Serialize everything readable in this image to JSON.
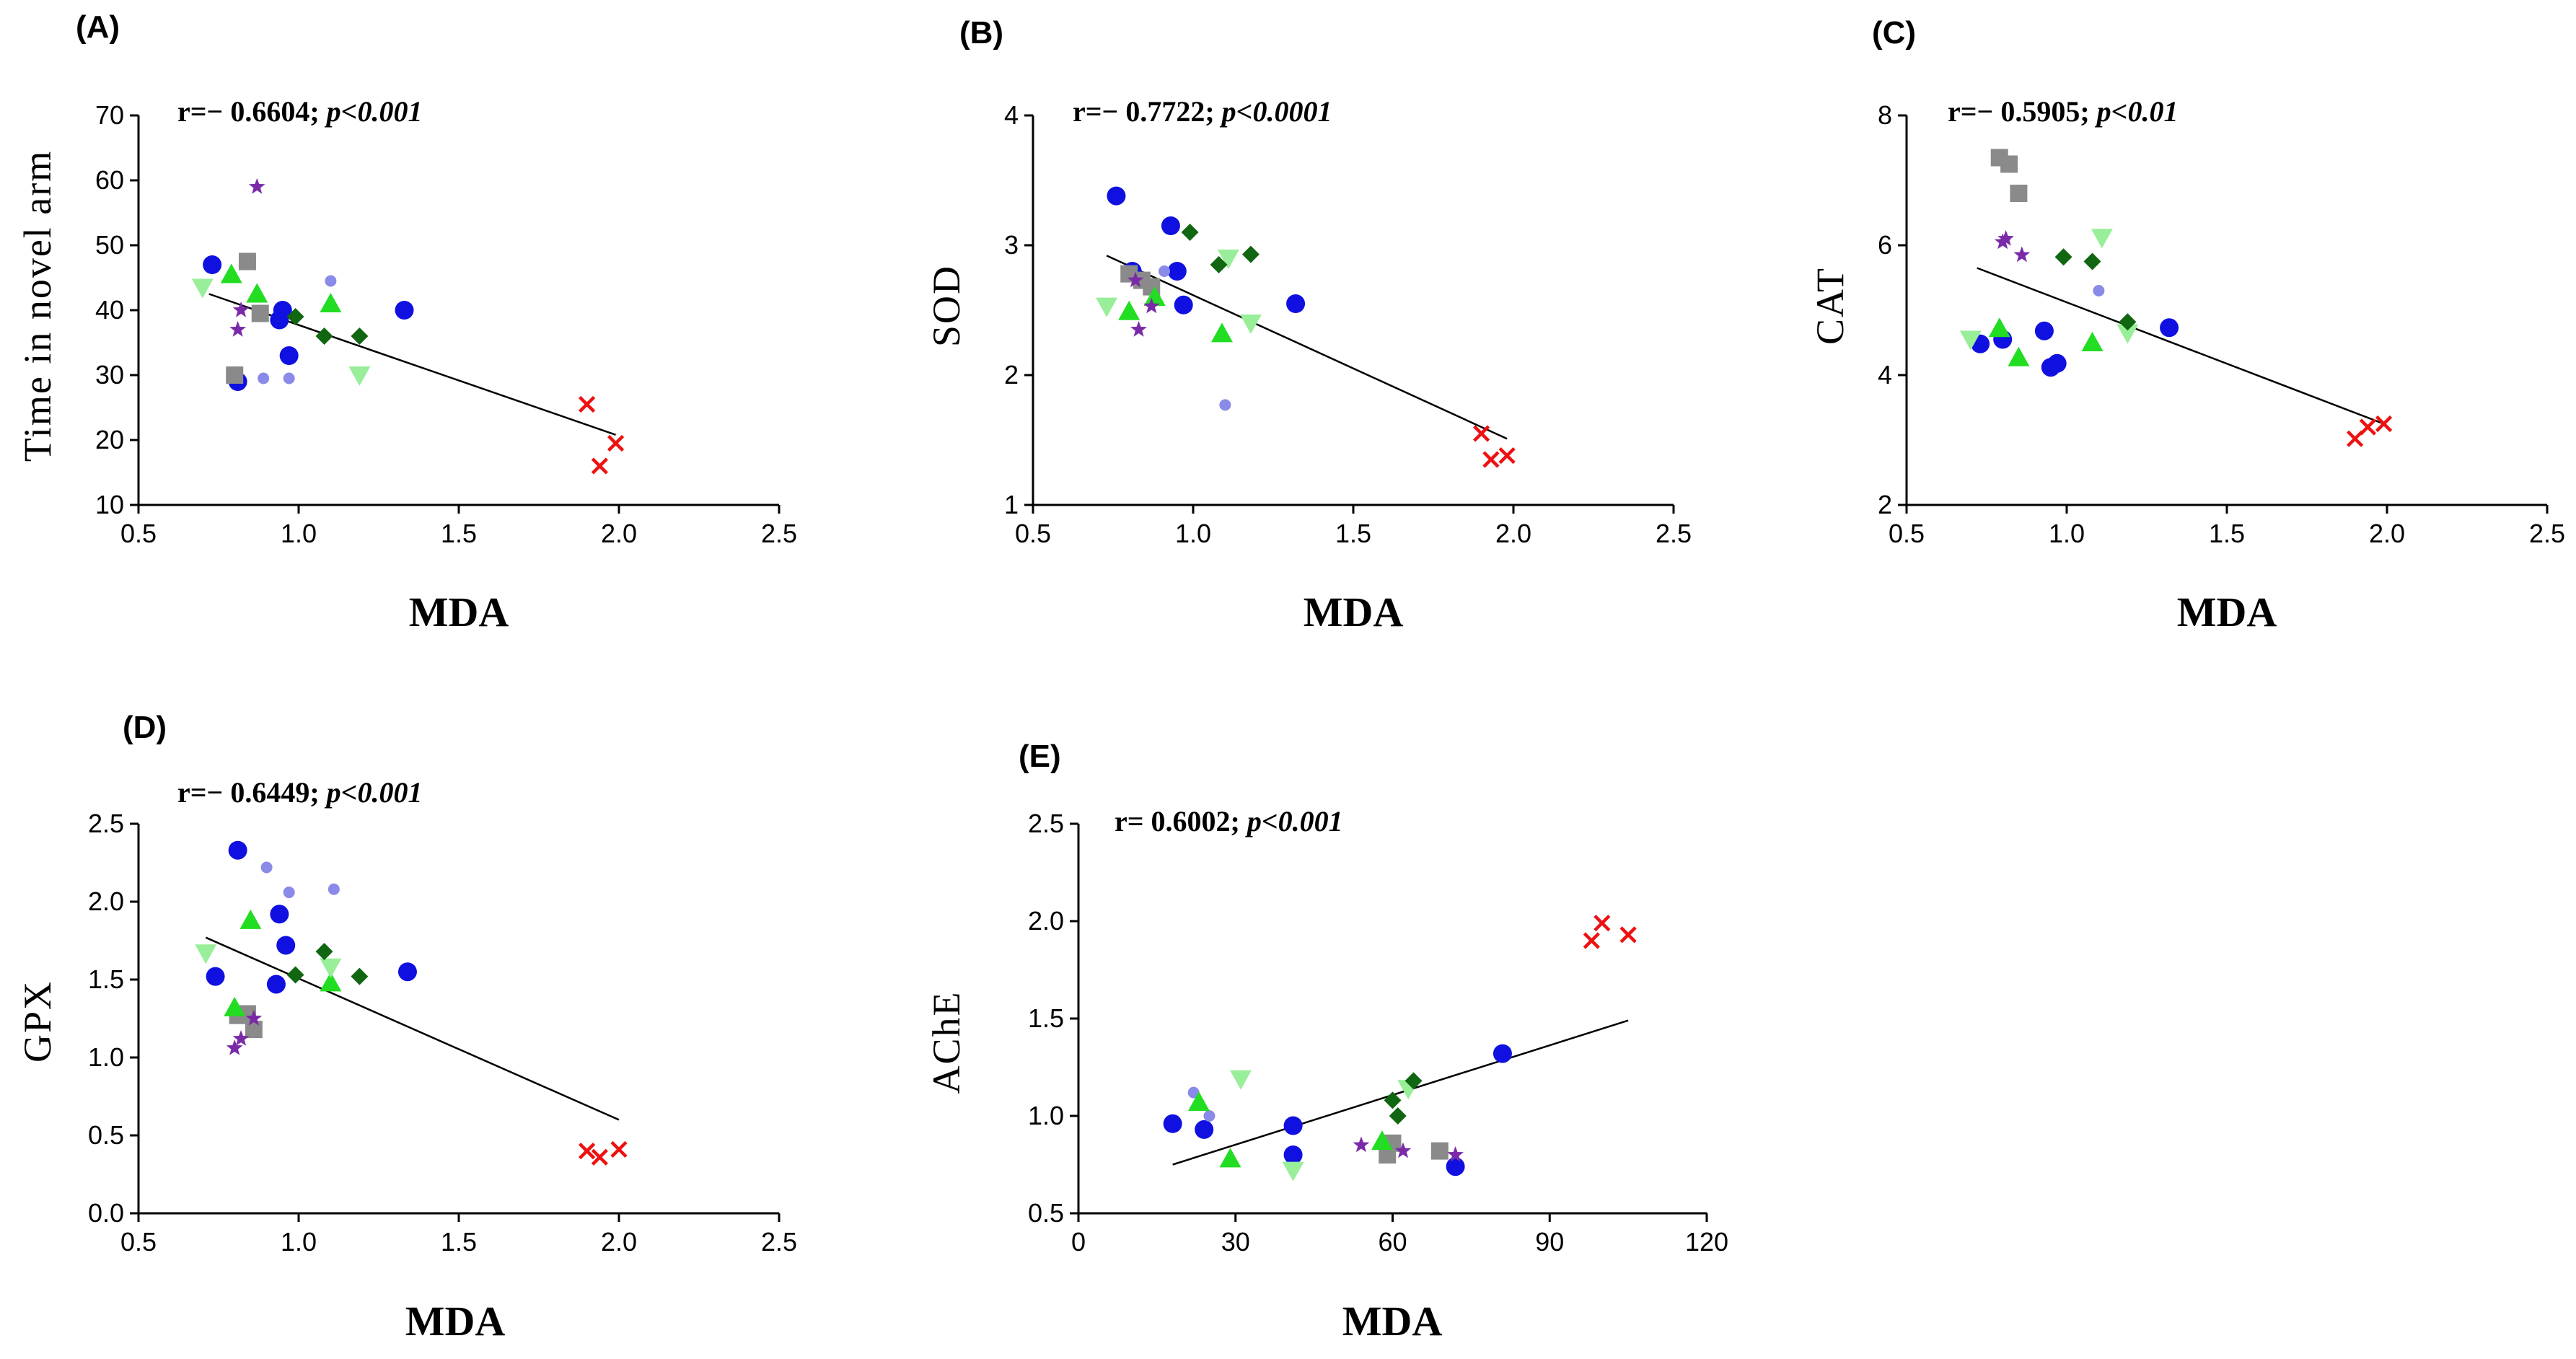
{
  "chart_data": [
    {
      "id": "A",
      "type": "scatter",
      "panel_label": "(A)",
      "stat_r": "r=− 0.6604; ",
      "stat_p": "p<0.001",
      "xlabel": "MDA",
      "ylabel": "Time in novel arm",
      "xlim": [
        0.5,
        2.5
      ],
      "ylim": [
        10,
        70
      ],
      "xticks": [
        0.5,
        1.0,
        1.5,
        2.0,
        2.5
      ],
      "yticks": [
        10,
        20,
        30,
        40,
        50,
        60,
        70
      ],
      "fit_line": {
        "x": [
          0.72,
          1.99
        ],
        "y": [
          42.5,
          20.8
        ]
      },
      "series": [
        {
          "name": "blue-circle",
          "marker": "circle",
          "color": "#1010e0",
          "points": [
            [
              0.73,
              47
            ],
            [
              0.81,
              29
            ],
            [
              0.94,
              38.5
            ],
            [
              0.95,
              40
            ],
            [
              0.97,
              33
            ],
            [
              1.33,
              40
            ]
          ]
        },
        {
          "name": "light-blue-circle",
          "marker": "small-circle",
          "color": "#8a8ae8",
          "points": [
            [
              0.89,
              29.5
            ],
            [
              0.97,
              29.5
            ],
            [
              1.1,
              44.5
            ]
          ]
        },
        {
          "name": "gray-square",
          "marker": "square",
          "color": "#8a8a8a",
          "points": [
            [
              0.8,
              30
            ],
            [
              0.84,
              47.5
            ],
            [
              0.88,
              39.5
            ]
          ]
        },
        {
          "name": "green-triangle",
          "marker": "triangle",
          "color": "#22dd22",
          "points": [
            [
              0.79,
              45.5
            ],
            [
              0.87,
              42.5
            ],
            [
              1.1,
              41
            ]
          ]
        },
        {
          "name": "light-green-triangle-down",
          "marker": "triangle-down",
          "color": "#99ee99",
          "points": [
            [
              0.7,
              43.5
            ],
            [
              1.19,
              30
            ]
          ]
        },
        {
          "name": "dark-green-diamond",
          "marker": "diamond",
          "color": "#116611",
          "points": [
            [
              0.99,
              39
            ],
            [
              1.08,
              36
            ],
            [
              1.19,
              36
            ]
          ]
        },
        {
          "name": "purple-star",
          "marker": "star",
          "color": "#7a2aa8",
          "points": [
            [
              0.81,
              37
            ],
            [
              0.82,
              40
            ],
            [
              0.87,
              59
            ]
          ]
        },
        {
          "name": "red-cross",
          "marker": "cross",
          "color": "#ee1111",
          "points": [
            [
              1.9,
              25.5
            ],
            [
              1.94,
              16
            ],
            [
              1.99,
              19.5
            ]
          ]
        }
      ]
    },
    {
      "id": "B",
      "type": "scatter",
      "panel_label": "(B)",
      "stat_r": "r=− 0.7722; ",
      "stat_p": "p<0.0001",
      "xlabel": "MDA",
      "ylabel": "SOD",
      "xlim": [
        0.5,
        2.5
      ],
      "ylim": [
        1,
        4
      ],
      "xticks": [
        0.5,
        1.0,
        1.5,
        2.0,
        2.5
      ],
      "yticks": [
        1,
        2,
        3,
        4
      ],
      "fit_line": {
        "x": [
          0.73,
          1.98
        ],
        "y": [
          2.92,
          1.51
        ]
      },
      "series": [
        {
          "name": "blue-circle",
          "marker": "circle",
          "color": "#1010e0",
          "points": [
            [
              0.76,
              3.38
            ],
            [
              0.81,
              2.8
            ],
            [
              0.93,
              3.15
            ],
            [
              0.95,
              2.8
            ],
            [
              0.97,
              2.54
            ],
            [
              1.32,
              2.55
            ]
          ]
        },
        {
          "name": "light-blue-circle",
          "marker": "small-circle",
          "color": "#8a8ae8",
          "points": [
            [
              0.91,
              2.8
            ],
            [
              1.1,
              1.77
            ]
          ]
        },
        {
          "name": "gray-square",
          "marker": "square",
          "color": "#8a8a8a",
          "points": [
            [
              0.8,
              2.78
            ],
            [
              0.84,
              2.73
            ],
            [
              0.87,
              2.68
            ]
          ]
        },
        {
          "name": "green-triangle",
          "marker": "triangle",
          "color": "#22dd22",
          "points": [
            [
              0.8,
              2.49
            ],
            [
              0.88,
              2.6
            ],
            [
              1.09,
              2.32
            ]
          ]
        },
        {
          "name": "light-green-triangle-down",
          "marker": "triangle-down",
          "color": "#99ee99",
          "points": [
            [
              0.73,
              2.53
            ],
            [
              1.11,
              2.9
            ],
            [
              1.18,
              2.4
            ]
          ]
        },
        {
          "name": "dark-green-diamond",
          "marker": "diamond",
          "color": "#116611",
          "points": [
            [
              0.99,
              3.1
            ],
            [
              1.08,
              2.85
            ],
            [
              1.18,
              2.93
            ]
          ]
        },
        {
          "name": "purple-star",
          "marker": "star",
          "color": "#7a2aa8",
          "points": [
            [
              0.82,
              2.73
            ],
            [
              0.83,
              2.35
            ],
            [
              0.87,
              2.53
            ]
          ]
        },
        {
          "name": "red-cross",
          "marker": "cross",
          "color": "#ee1111",
          "points": [
            [
              1.9,
              1.55
            ],
            [
              1.93,
              1.35
            ],
            [
              1.98,
              1.38
            ]
          ]
        }
      ]
    },
    {
      "id": "C",
      "type": "scatter",
      "panel_label": "(C)",
      "stat_r": "r=− 0.5905; ",
      "stat_p": "p<0.01",
      "xlabel": "MDA",
      "ylabel": "CAT",
      "xlim": [
        0.5,
        2.5
      ],
      "ylim": [
        2,
        8
      ],
      "xticks": [
        0.5,
        1.0,
        1.5,
        2.0,
        2.5
      ],
      "yticks": [
        2,
        4,
        6,
        8
      ],
      "fit_line": {
        "x": [
          0.72,
          1.99
        ],
        "y": [
          5.65,
          3.25
        ]
      },
      "series": [
        {
          "name": "blue-circle",
          "marker": "circle",
          "color": "#1010e0",
          "points": [
            [
              0.73,
              4.48
            ],
            [
              0.8,
              4.55
            ],
            [
              0.93,
              4.68
            ],
            [
              0.95,
              4.12
            ],
            [
              0.97,
              4.18
            ],
            [
              1.32,
              4.73
            ]
          ]
        },
        {
          "name": "light-blue-circle",
          "marker": "small-circle",
          "color": "#8a8ae8",
          "points": [
            [
              1.1,
              5.3
            ]
          ]
        },
        {
          "name": "gray-square",
          "marker": "square",
          "color": "#8a8a8a",
          "points": [
            [
              0.79,
              7.35
            ],
            [
              0.82,
              7.25
            ],
            [
              0.85,
              6.8
            ]
          ]
        },
        {
          "name": "green-triangle",
          "marker": "triangle",
          "color": "#22dd22",
          "points": [
            [
              0.79,
              4.72
            ],
            [
              0.85,
              4.27
            ],
            [
              1.08,
              4.5
            ]
          ]
        },
        {
          "name": "light-green-triangle-down",
          "marker": "triangle-down",
          "color": "#99ee99",
          "points": [
            [
              0.7,
              4.55
            ],
            [
              1.11,
              6.12
            ],
            [
              1.19,
              4.65
            ]
          ]
        },
        {
          "name": "dark-green-diamond",
          "marker": "diamond",
          "color": "#116611",
          "points": [
            [
              0.99,
              5.82
            ],
            [
              1.08,
              5.75
            ],
            [
              1.19,
              4.82
            ]
          ]
        },
        {
          "name": "purple-star",
          "marker": "star",
          "color": "#7a2aa8",
          "points": [
            [
              0.8,
              6.05
            ],
            [
              0.81,
              6.1
            ],
            [
              0.86,
              5.85
            ]
          ]
        },
        {
          "name": "red-cross",
          "marker": "cross",
          "color": "#ee1111",
          "points": [
            [
              1.9,
              3.02
            ],
            [
              1.94,
              3.2
            ],
            [
              1.99,
              3.25
            ]
          ]
        }
      ]
    },
    {
      "id": "D",
      "type": "scatter",
      "panel_label": "(D)",
      "stat_r": "r=− 0.6449; ",
      "stat_p": "p<0.001",
      "xlabel": "MDA",
      "ylabel": "GPX",
      "xlim": [
        0.5,
        2.5
      ],
      "ylim": [
        0.0,
        2.5
      ],
      "xticks": [
        0.5,
        1.0,
        1.5,
        2.0,
        2.5
      ],
      "yticks": [
        0.0,
        0.5,
        1.0,
        1.5,
        2.0,
        2.5
      ],
      "fit_line": {
        "x": [
          0.71,
          2.0
        ],
        "y": [
          1.77,
          0.6
        ]
      },
      "series": [
        {
          "name": "blue-circle",
          "marker": "circle",
          "color": "#1010e0",
          "points": [
            [
              0.74,
              1.52
            ],
            [
              0.81,
              2.33
            ],
            [
              0.93,
              1.47
            ],
            [
              0.94,
              1.92
            ],
            [
              0.96,
              1.72
            ],
            [
              1.34,
              1.55
            ]
          ]
        },
        {
          "name": "light-blue-circle",
          "marker": "small-circle",
          "color": "#8a8ae8",
          "points": [
            [
              0.9,
              2.22
            ],
            [
              0.97,
              2.06
            ],
            [
              1.11,
              2.08
            ]
          ]
        },
        {
          "name": "gray-square",
          "marker": "square",
          "color": "#8a8a8a",
          "points": [
            [
              0.81,
              1.27
            ],
            [
              0.84,
              1.28
            ],
            [
              0.86,
              1.18
            ]
          ]
        },
        {
          "name": "green-triangle",
          "marker": "triangle",
          "color": "#22dd22",
          "points": [
            [
              0.8,
              1.32
            ],
            [
              0.85,
              1.88
            ],
            [
              1.1,
              1.48
            ]
          ]
        },
        {
          "name": "light-green-triangle-down",
          "marker": "triangle-down",
          "color": "#99ee99",
          "points": [
            [
              0.71,
              1.67
            ],
            [
              1.1,
              1.58
            ]
          ]
        },
        {
          "name": "dark-green-diamond",
          "marker": "diamond",
          "color": "#116611",
          "points": [
            [
              0.99,
              1.53
            ],
            [
              1.08,
              1.68
            ],
            [
              1.19,
              1.52
            ]
          ]
        },
        {
          "name": "purple-star",
          "marker": "star",
          "color": "#7a2aa8",
          "points": [
            [
              0.8,
              1.06
            ],
            [
              0.82,
              1.12
            ],
            [
              0.86,
              1.25
            ]
          ]
        },
        {
          "name": "red-cross",
          "marker": "cross",
          "color": "#ee1111",
          "points": [
            [
              1.9,
              0.4
            ],
            [
              1.94,
              0.36
            ],
            [
              2.0,
              0.41
            ]
          ]
        }
      ]
    },
    {
      "id": "E",
      "type": "scatter",
      "panel_label": "(E)",
      "stat_r": "r= 0.6002; ",
      "stat_p": "p<0.001",
      "xlabel": "MDA",
      "ylabel": "AChE",
      "xlim": [
        0,
        120
      ],
      "ylim": [
        0.5,
        2.5
      ],
      "xticks": [
        0,
        30,
        60,
        90,
        120
      ],
      "yticks": [
        0.5,
        1.0,
        1.5,
        2.0,
        2.5
      ],
      "fit_line": {
        "x": [
          18,
          105
        ],
        "y": [
          0.75,
          1.49
        ]
      },
      "series": [
        {
          "name": "blue-circle",
          "marker": "circle",
          "color": "#1010e0",
          "points": [
            [
              18,
              0.96
            ],
            [
              24,
              0.93
            ],
            [
              41,
              0.95
            ],
            [
              41,
              0.8
            ],
            [
              72,
              0.74
            ],
            [
              81,
              1.32
            ]
          ]
        },
        {
          "name": "light-blue-circle",
          "marker": "small-circle",
          "color": "#8a8ae8",
          "points": [
            [
              22,
              1.12
            ],
            [
              25,
              1.0
            ]
          ]
        },
        {
          "name": "gray-square",
          "marker": "square",
          "color": "#8a8a8a",
          "points": [
            [
              59,
              0.8
            ],
            [
              60,
              0.86
            ],
            [
              69,
              0.82
            ]
          ]
        },
        {
          "name": "green-triangle",
          "marker": "triangle",
          "color": "#22dd22",
          "points": [
            [
              23,
              1.07
            ],
            [
              29,
              0.78
            ],
            [
              58,
              0.87
            ]
          ]
        },
        {
          "name": "light-green-triangle-down",
          "marker": "triangle-down",
          "color": "#99ee99",
          "points": [
            [
              31,
              1.19
            ],
            [
              41,
              0.72
            ],
            [
              63,
              1.14
            ]
          ]
        },
        {
          "name": "dark-green-diamond",
          "marker": "diamond",
          "color": "#116611",
          "points": [
            [
              60,
              1.08
            ],
            [
              61,
              1.0
            ],
            [
              64,
              1.18
            ]
          ]
        },
        {
          "name": "purple-star",
          "marker": "star",
          "color": "#7a2aa8",
          "points": [
            [
              54,
              0.85
            ],
            [
              62,
              0.82
            ],
            [
              72,
              0.8
            ]
          ]
        },
        {
          "name": "red-cross",
          "marker": "cross",
          "color": "#ee1111",
          "points": [
            [
              98,
              1.9
            ],
            [
              100,
              1.99
            ],
            [
              105,
              1.93
            ]
          ]
        }
      ]
    }
  ]
}
